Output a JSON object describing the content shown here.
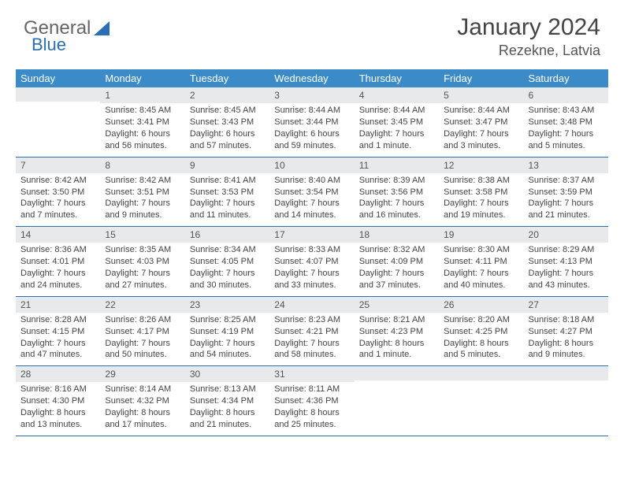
{
  "brand": {
    "part1": "General",
    "part2": "Blue"
  },
  "title": "January 2024",
  "location": "Rezekne, Latvia",
  "dow": [
    "Sunday",
    "Monday",
    "Tuesday",
    "Wednesday",
    "Thursday",
    "Friday",
    "Saturday"
  ],
  "colors": {
    "header_bg": "#3b8bc9",
    "header_text": "#ffffff",
    "daynum_bg": "#e8e9ea",
    "week_border": "#2a6fb5",
    "text": "#444444"
  },
  "weeks": [
    [
      {
        "n": "",
        "sr": "",
        "ss": "",
        "dl": ""
      },
      {
        "n": "1",
        "sr": "Sunrise: 8:45 AM",
        "ss": "Sunset: 3:41 PM",
        "dl": "Daylight: 6 hours and 56 minutes."
      },
      {
        "n": "2",
        "sr": "Sunrise: 8:45 AM",
        "ss": "Sunset: 3:43 PM",
        "dl": "Daylight: 6 hours and 57 minutes."
      },
      {
        "n": "3",
        "sr": "Sunrise: 8:44 AM",
        "ss": "Sunset: 3:44 PM",
        "dl": "Daylight: 6 hours and 59 minutes."
      },
      {
        "n": "4",
        "sr": "Sunrise: 8:44 AM",
        "ss": "Sunset: 3:45 PM",
        "dl": "Daylight: 7 hours and 1 minute."
      },
      {
        "n": "5",
        "sr": "Sunrise: 8:44 AM",
        "ss": "Sunset: 3:47 PM",
        "dl": "Daylight: 7 hours and 3 minutes."
      },
      {
        "n": "6",
        "sr": "Sunrise: 8:43 AM",
        "ss": "Sunset: 3:48 PM",
        "dl": "Daylight: 7 hours and 5 minutes."
      }
    ],
    [
      {
        "n": "7",
        "sr": "Sunrise: 8:42 AM",
        "ss": "Sunset: 3:50 PM",
        "dl": "Daylight: 7 hours and 7 minutes."
      },
      {
        "n": "8",
        "sr": "Sunrise: 8:42 AM",
        "ss": "Sunset: 3:51 PM",
        "dl": "Daylight: 7 hours and 9 minutes."
      },
      {
        "n": "9",
        "sr": "Sunrise: 8:41 AM",
        "ss": "Sunset: 3:53 PM",
        "dl": "Daylight: 7 hours and 11 minutes."
      },
      {
        "n": "10",
        "sr": "Sunrise: 8:40 AM",
        "ss": "Sunset: 3:54 PM",
        "dl": "Daylight: 7 hours and 14 minutes."
      },
      {
        "n": "11",
        "sr": "Sunrise: 8:39 AM",
        "ss": "Sunset: 3:56 PM",
        "dl": "Daylight: 7 hours and 16 minutes."
      },
      {
        "n": "12",
        "sr": "Sunrise: 8:38 AM",
        "ss": "Sunset: 3:58 PM",
        "dl": "Daylight: 7 hours and 19 minutes."
      },
      {
        "n": "13",
        "sr": "Sunrise: 8:37 AM",
        "ss": "Sunset: 3:59 PM",
        "dl": "Daylight: 7 hours and 21 minutes."
      }
    ],
    [
      {
        "n": "14",
        "sr": "Sunrise: 8:36 AM",
        "ss": "Sunset: 4:01 PM",
        "dl": "Daylight: 7 hours and 24 minutes."
      },
      {
        "n": "15",
        "sr": "Sunrise: 8:35 AM",
        "ss": "Sunset: 4:03 PM",
        "dl": "Daylight: 7 hours and 27 minutes."
      },
      {
        "n": "16",
        "sr": "Sunrise: 8:34 AM",
        "ss": "Sunset: 4:05 PM",
        "dl": "Daylight: 7 hours and 30 minutes."
      },
      {
        "n": "17",
        "sr": "Sunrise: 8:33 AM",
        "ss": "Sunset: 4:07 PM",
        "dl": "Daylight: 7 hours and 33 minutes."
      },
      {
        "n": "18",
        "sr": "Sunrise: 8:32 AM",
        "ss": "Sunset: 4:09 PM",
        "dl": "Daylight: 7 hours and 37 minutes."
      },
      {
        "n": "19",
        "sr": "Sunrise: 8:30 AM",
        "ss": "Sunset: 4:11 PM",
        "dl": "Daylight: 7 hours and 40 minutes."
      },
      {
        "n": "20",
        "sr": "Sunrise: 8:29 AM",
        "ss": "Sunset: 4:13 PM",
        "dl": "Daylight: 7 hours and 43 minutes."
      }
    ],
    [
      {
        "n": "21",
        "sr": "Sunrise: 8:28 AM",
        "ss": "Sunset: 4:15 PM",
        "dl": "Daylight: 7 hours and 47 minutes."
      },
      {
        "n": "22",
        "sr": "Sunrise: 8:26 AM",
        "ss": "Sunset: 4:17 PM",
        "dl": "Daylight: 7 hours and 50 minutes."
      },
      {
        "n": "23",
        "sr": "Sunrise: 8:25 AM",
        "ss": "Sunset: 4:19 PM",
        "dl": "Daylight: 7 hours and 54 minutes."
      },
      {
        "n": "24",
        "sr": "Sunrise: 8:23 AM",
        "ss": "Sunset: 4:21 PM",
        "dl": "Daylight: 7 hours and 58 minutes."
      },
      {
        "n": "25",
        "sr": "Sunrise: 8:21 AM",
        "ss": "Sunset: 4:23 PM",
        "dl": "Daylight: 8 hours and 1 minute."
      },
      {
        "n": "26",
        "sr": "Sunrise: 8:20 AM",
        "ss": "Sunset: 4:25 PM",
        "dl": "Daylight: 8 hours and 5 minutes."
      },
      {
        "n": "27",
        "sr": "Sunrise: 8:18 AM",
        "ss": "Sunset: 4:27 PM",
        "dl": "Daylight: 8 hours and 9 minutes."
      }
    ],
    [
      {
        "n": "28",
        "sr": "Sunrise: 8:16 AM",
        "ss": "Sunset: 4:30 PM",
        "dl": "Daylight: 8 hours and 13 minutes."
      },
      {
        "n": "29",
        "sr": "Sunrise: 8:14 AM",
        "ss": "Sunset: 4:32 PM",
        "dl": "Daylight: 8 hours and 17 minutes."
      },
      {
        "n": "30",
        "sr": "Sunrise: 8:13 AM",
        "ss": "Sunset: 4:34 PM",
        "dl": "Daylight: 8 hours and 21 minutes."
      },
      {
        "n": "31",
        "sr": "Sunrise: 8:11 AM",
        "ss": "Sunset: 4:36 PM",
        "dl": "Daylight: 8 hours and 25 minutes."
      },
      {
        "n": "",
        "sr": "",
        "ss": "",
        "dl": ""
      },
      {
        "n": "",
        "sr": "",
        "ss": "",
        "dl": ""
      },
      {
        "n": "",
        "sr": "",
        "ss": "",
        "dl": ""
      }
    ]
  ]
}
